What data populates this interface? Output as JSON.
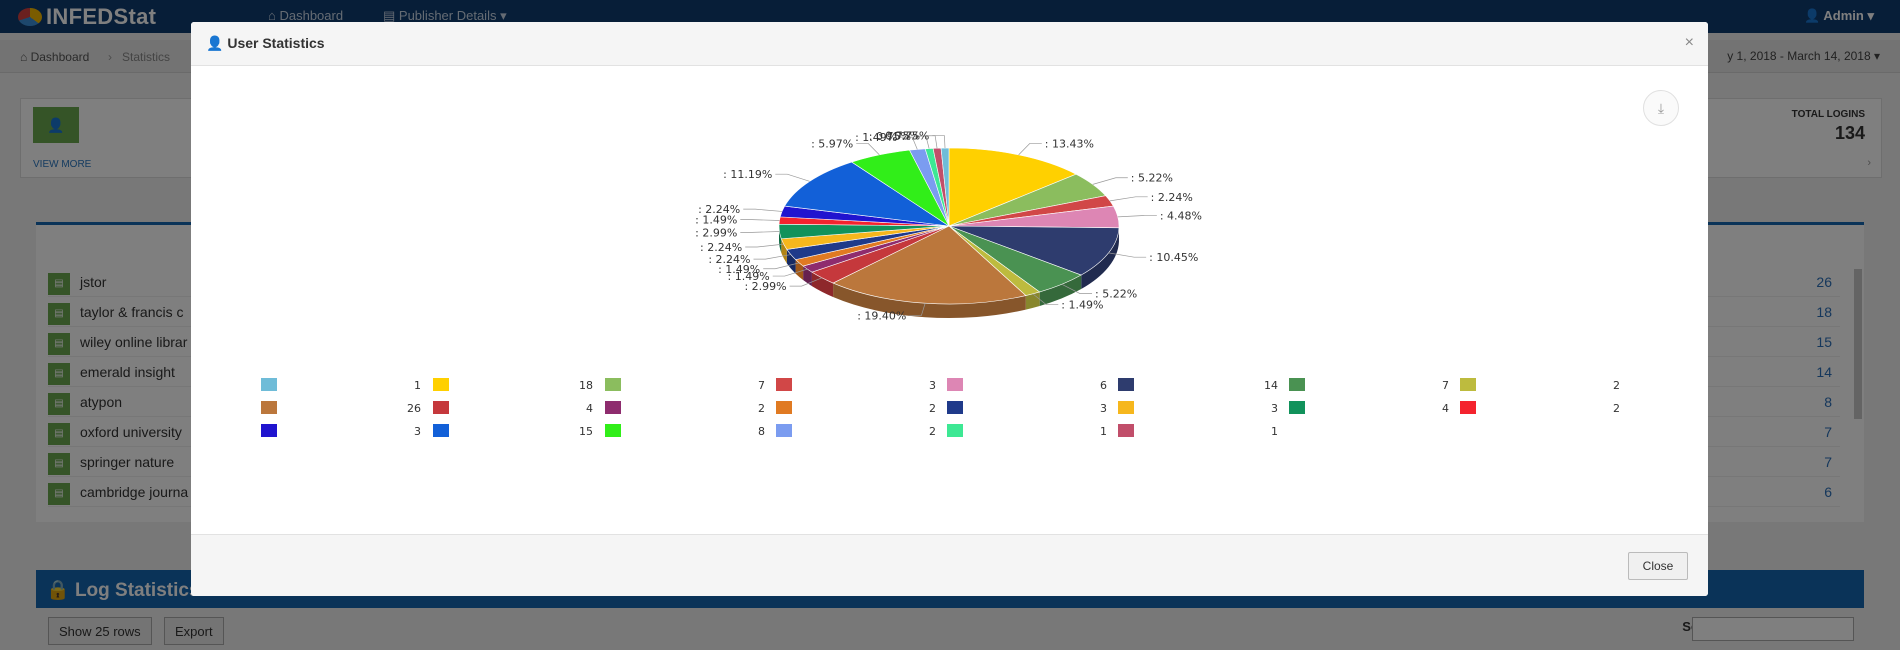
{
  "app": {
    "brand": "INFEDStat",
    "nav": {
      "dashboard": "Dashboard",
      "publisher": "Publisher Details",
      "admin": "Admin"
    },
    "breadcrumb": {
      "home": "Dashboard",
      "current": "Statistics"
    },
    "date_range": "y 1, 2018 - March 14, 2018",
    "stat_card": {
      "view_more": "VIEW MORE",
      "total_label": "TOTAL LOGINS",
      "total_value": "134"
    },
    "publishers": [
      {
        "name": "jstor",
        "count": "26"
      },
      {
        "name": "taylor & francis c",
        "count": "18"
      },
      {
        "name": "wiley online librar",
        "count": "15"
      },
      {
        "name": "emerald insight",
        "count": "14"
      },
      {
        "name": "atypon",
        "count": "8"
      },
      {
        "name": "oxford university",
        "count": "7"
      },
      {
        "name": "springer nature",
        "count": "7"
      },
      {
        "name": "cambridge journa",
        "count": "6"
      }
    ],
    "log_stats": {
      "title": "Log Statistics",
      "show_rows": "Show 25 rows",
      "export": "Export",
      "search_label": "Search:"
    }
  },
  "modal": {
    "title": "User Statistics",
    "close_label": "Close"
  },
  "chart_data": {
    "type": "pie",
    "title": "",
    "total": 134,
    "series": [
      {
        "name": "",
        "value": 18,
        "percent": "13.43%",
        "color": "#ffd000"
      },
      {
        "name": "",
        "value": 7,
        "percent": "5.22%",
        "color": "#8bbd5e"
      },
      {
        "name": "",
        "value": 3,
        "percent": "2.24%",
        "color": "#d14747"
      },
      {
        "name": "",
        "value": 6,
        "percent": "4.48%",
        "color": "#dd86b4"
      },
      {
        "name": "",
        "value": 14,
        "percent": "10.45%",
        "color": "#2e3c6e"
      },
      {
        "name": "",
        "value": 7,
        "percent": "5.22%",
        "color": "#4a9252"
      },
      {
        "name": "",
        "value": 2,
        "percent": "1.49%",
        "color": "#bdbb3e"
      },
      {
        "name": "",
        "value": 26,
        "percent": "19.40%",
        "color": "#bb773c"
      },
      {
        "name": "",
        "value": 4,
        "percent": "2.99%",
        "color": "#c5383c"
      },
      {
        "name": "",
        "value": 2,
        "percent": "1.49%",
        "color": "#8e2c6e"
      },
      {
        "name": "",
        "value": 2,
        "percent": "1.49%",
        "color": "#e07a22"
      },
      {
        "name": "",
        "value": 3,
        "percent": "2.24%",
        "color": "#1f3a8a"
      },
      {
        "name": "",
        "value": 3,
        "percent": "2.24%",
        "color": "#f6b71d"
      },
      {
        "name": "",
        "value": 4,
        "percent": "2.99%",
        "color": "#11925b"
      },
      {
        "name": "",
        "value": 2,
        "percent": "1.49%",
        "color": "#f4232e"
      },
      {
        "name": "",
        "value": 3,
        "percent": "2.24%",
        "color": "#2014cf"
      },
      {
        "name": "",
        "value": 15,
        "percent": "11.19%",
        "color": "#1260d8"
      },
      {
        "name": "",
        "value": 8,
        "percent": "5.97%",
        "color": "#31ee19"
      },
      {
        "name": "",
        "value": 2,
        "percent": "1.49%",
        "color": "#7b9cf0"
      },
      {
        "name": "",
        "value": 1,
        "percent": "0.75%",
        "color": "#3de894"
      },
      {
        "name": "",
        "value": 1,
        "percent": "0.75%",
        "color": "#c14e6a"
      },
      {
        "name": "",
        "value": 1,
        "percent": "0.75%",
        "color": "#6fbcd8"
      }
    ],
    "legend": [
      {
        "value": 1,
        "color": "#6fbcd8"
      },
      {
        "value": 18,
        "color": "#ffd000"
      },
      {
        "value": 7,
        "color": "#8bbd5e"
      },
      {
        "value": 3,
        "color": "#d14747"
      },
      {
        "value": 6,
        "color": "#dd86b4"
      },
      {
        "value": 14,
        "color": "#2e3c6e"
      },
      {
        "value": 7,
        "color": "#4a9252"
      },
      {
        "value": 2,
        "color": "#bdbb3e"
      },
      {
        "value": 26,
        "color": "#bb773c"
      },
      {
        "value": 4,
        "color": "#c5383c"
      },
      {
        "value": 2,
        "color": "#8e2c6e"
      },
      {
        "value": 2,
        "color": "#e07a22"
      },
      {
        "value": 3,
        "color": "#1f3a8a"
      },
      {
        "value": 3,
        "color": "#f6b71d"
      },
      {
        "value": 4,
        "color": "#11925b"
      },
      {
        "value": 2,
        "color": "#f4232e"
      },
      {
        "value": 3,
        "color": "#2014cf"
      },
      {
        "value": 15,
        "color": "#1260d8"
      },
      {
        "value": 8,
        "color": "#31ee19"
      },
      {
        "value": 2,
        "color": "#7b9cf0"
      },
      {
        "value": 1,
        "color": "#3de894"
      },
      {
        "value": 1,
        "color": "#c14e6a"
      }
    ],
    "legend_placement": "bottom"
  }
}
